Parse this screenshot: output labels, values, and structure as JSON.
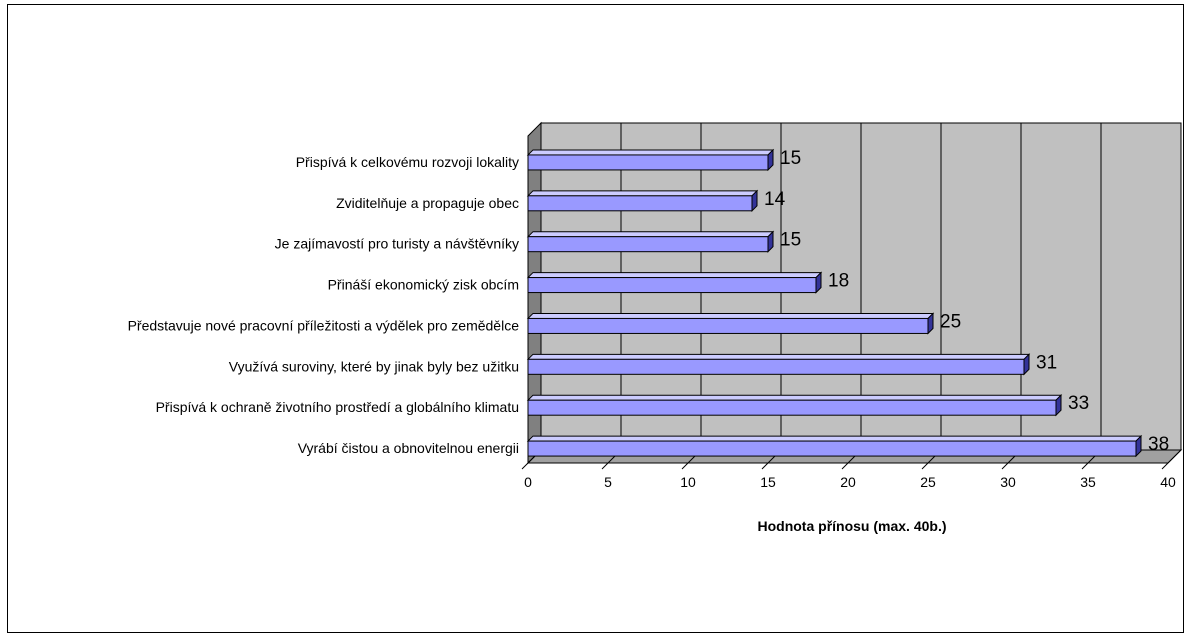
{
  "chart_data": {
    "type": "bar",
    "orientation": "horizontal",
    "style": "3d",
    "categories": [
      "Přispívá k celkovému rozvoji lokality",
      "Zviditelňuje a propaguje obec",
      "Je zajímavostí pro turisty a návštěvníky",
      "Přináší ekonomický zisk obcím",
      "Představuje nové pracovní příležitosti a výdělek pro zemědělce",
      "Využívá suroviny, které by jinak byly bez užitku",
      "Přispívá k ochraně životního prostředí a globálního klimatu",
      "Vyrábí čistou a obnovitelnou energii"
    ],
    "values": [
      15,
      14,
      15,
      18,
      25,
      31,
      33,
      38
    ],
    "xlabel": "Hodnota přínosu (max. 40b.)",
    "ylabel": "",
    "xlim": [
      0,
      40
    ],
    "ticks": [
      "0",
      "5",
      "10",
      "15",
      "20",
      "25",
      "30",
      "35",
      "40"
    ],
    "grid": true,
    "data_labels": true,
    "colors": {
      "bar_front": "#9999ff",
      "bar_top": "#ccccff",
      "bar_side": "#333399",
      "plot_back": "#c0c0c0",
      "plot_floor": "#a0a0a0"
    }
  }
}
